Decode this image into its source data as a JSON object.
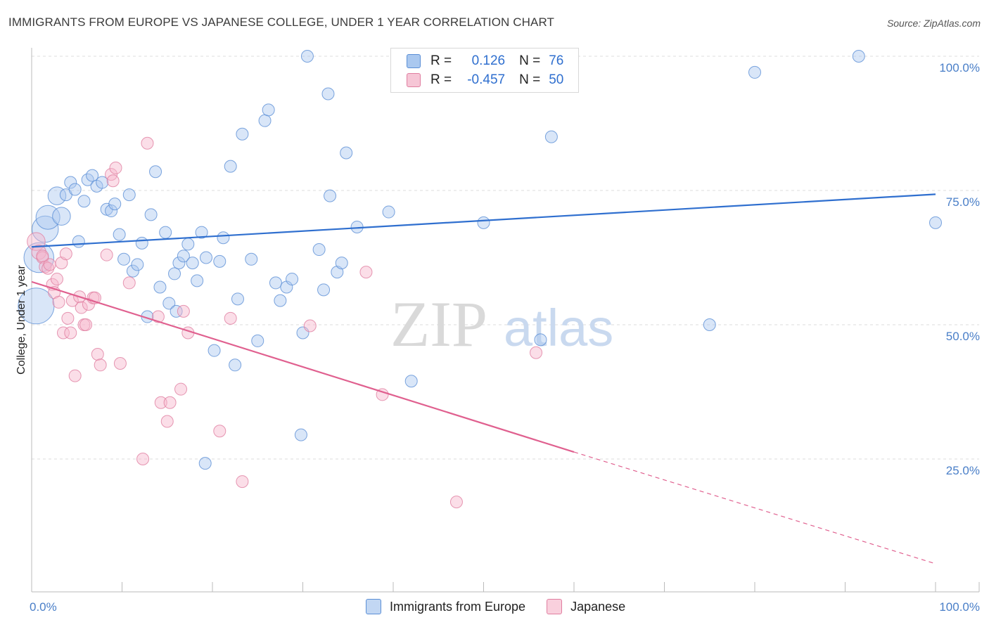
{
  "header": {
    "title": "IMMIGRANTS FROM EUROPE VS JAPANESE COLLEGE, UNDER 1 YEAR CORRELATION CHART",
    "source": "Source: ZipAtlas.com"
  },
  "legend": {
    "rows": [
      {
        "r_label": "R =",
        "r_value": "0.126",
        "n_label": "N =",
        "n_value": "76"
      },
      {
        "r_label": "R =",
        "r_value": "-0.457",
        "n_label": "N =",
        "n_value": "50"
      }
    ]
  },
  "watermark": {
    "zip": "ZIP",
    "atlas": "atlas"
  },
  "colors": {
    "blue_fill": "#aac8ef",
    "blue_stroke": "#5b8fd6",
    "blue_line": "#2f6fcf",
    "pink_fill": "#f6b6cb",
    "pink_stroke": "#e07ea0",
    "pink_line": "#e0608f",
    "grid": "#dcdcdc",
    "tick_text": "#4a7fc8"
  },
  "chart_data": {
    "type": "scatter",
    "title": "IMMIGRANTS FROM EUROPE VS JAPANESE COLLEGE, UNDER 1 YEAR CORRELATION CHART",
    "xlabel": "",
    "ylabel": "College, Under 1 year",
    "xlim": [
      0,
      100
    ],
    "ylim": [
      0,
      103
    ],
    "x_tick_labels": [
      "0.0%",
      "100.0%"
    ],
    "y_tick_labels": [
      "25.0%",
      "50.0%",
      "75.0%",
      "100.0%"
    ],
    "y_ticks": [
      25,
      50,
      75,
      100
    ],
    "grid": true,
    "legend_position": "top-center",
    "series": [
      {
        "name": "Immigrants from Europe",
        "color": "#aac8ef",
        "r": 0.126,
        "n": 76,
        "trend": {
          "x0": 0,
          "y0": 64.5,
          "x1": 100,
          "y1": 74.3
        },
        "points": [
          [
            0.5,
            53.5,
            3
          ],
          [
            0.8,
            62.5,
            2.5
          ],
          [
            1.5,
            67.8,
            2.2
          ],
          [
            1.8,
            70.0,
            2
          ],
          [
            2.8,
            74.0,
            1.5
          ],
          [
            3.3,
            70.2,
            1.5
          ],
          [
            3.8,
            74.2,
            1
          ],
          [
            4.3,
            76.5,
            1
          ],
          [
            4.8,
            75.2,
            1
          ],
          [
            5.2,
            65.5,
            1
          ],
          [
            5.8,
            73.0,
            1
          ],
          [
            6.2,
            77.0,
            1
          ],
          [
            6.7,
            77.8,
            1
          ],
          [
            7.2,
            75.8,
            1
          ],
          [
            7.8,
            76.5,
            1
          ],
          [
            8.3,
            71.5,
            1
          ],
          [
            8.8,
            71.2,
            1
          ],
          [
            9.2,
            72.5,
            1
          ],
          [
            9.7,
            66.8,
            1
          ],
          [
            10.2,
            62.2,
            1
          ],
          [
            10.8,
            74.2,
            1
          ],
          [
            11.2,
            60.0,
            1
          ],
          [
            11.7,
            61.2,
            1
          ],
          [
            12.2,
            65.2,
            1
          ],
          [
            12.8,
            51.5,
            1
          ],
          [
            13.2,
            70.5,
            1
          ],
          [
            13.7,
            78.5,
            1
          ],
          [
            14.2,
            57.0,
            1
          ],
          [
            14.8,
            67.2,
            1
          ],
          [
            15.2,
            54.0,
            1
          ],
          [
            15.8,
            59.5,
            1
          ],
          [
            16.3,
            61.5,
            1
          ],
          [
            16.8,
            62.8,
            1
          ],
          [
            17.3,
            65.0,
            1
          ],
          [
            17.8,
            61.5,
            1
          ],
          [
            18.3,
            58.2,
            1
          ],
          [
            18.8,
            67.2,
            1
          ],
          [
            19.3,
            62.5,
            1
          ],
          [
            20.2,
            45.2,
            1
          ],
          [
            20.8,
            61.8,
            1
          ],
          [
            21.2,
            66.2,
            1
          ],
          [
            22.0,
            79.5,
            1
          ],
          [
            22.5,
            42.5,
            1
          ],
          [
            22.8,
            54.8,
            1
          ],
          [
            23.3,
            85.5,
            1
          ],
          [
            24.3,
            62.2,
            1
          ],
          [
            25.0,
            47.0,
            1
          ],
          [
            25.8,
            88.0,
            1
          ],
          [
            26.2,
            90.0,
            1
          ],
          [
            27.0,
            57.8,
            1
          ],
          [
            27.5,
            54.5,
            1
          ],
          [
            28.2,
            57.0,
            1
          ],
          [
            28.8,
            58.5,
            1
          ],
          [
            29.8,
            29.5,
            1
          ],
          [
            30.0,
            48.5,
            1
          ],
          [
            30.5,
            100.0,
            1
          ],
          [
            31.8,
            64.0,
            1
          ],
          [
            32.3,
            56.5,
            1
          ],
          [
            32.8,
            93.0,
            1
          ],
          [
            33.0,
            74.0,
            1
          ],
          [
            33.8,
            59.8,
            1
          ],
          [
            34.3,
            61.5,
            1
          ],
          [
            34.8,
            82.0,
            1
          ],
          [
            36.0,
            68.2,
            1
          ],
          [
            39.5,
            71.0,
            1
          ],
          [
            42.0,
            39.5,
            1
          ],
          [
            44.0,
            100.0,
            1
          ],
          [
            50.0,
            69.0,
            1
          ],
          [
            56.3,
            47.2,
            1
          ],
          [
            57.5,
            85.0,
            1
          ],
          [
            75.0,
            50.0,
            1
          ],
          [
            80.0,
            97.0,
            1
          ],
          [
            91.5,
            100.0,
            1
          ],
          [
            100.0,
            69.0,
            1
          ],
          [
            19.2,
            24.2,
            1
          ],
          [
            16.0,
            52.5,
            1
          ]
        ]
      },
      {
        "name": "Japanese",
        "color": "#f6b6cb",
        "r": -0.457,
        "n": 50,
        "trend": {
          "x0": 0,
          "y0": 58.0,
          "x1": 60,
          "y1": 26.3,
          "dashed_to": {
            "x": 100,
            "y": 5.5
          }
        },
        "points": [
          [
            0.5,
            65.5,
            1.5
          ],
          [
            0.8,
            63.5,
            1.2
          ],
          [
            1.2,
            62.5,
            1
          ],
          [
            1.5,
            60.8,
            1
          ],
          [
            1.8,
            60.5,
            1
          ],
          [
            2.0,
            61.2,
            1
          ],
          [
            2.3,
            57.5,
            1
          ],
          [
            2.5,
            56.0,
            1
          ],
          [
            2.8,
            58.5,
            1
          ],
          [
            3.0,
            54.2,
            1
          ],
          [
            3.3,
            61.5,
            1
          ],
          [
            3.5,
            48.5,
            1
          ],
          [
            3.8,
            63.2,
            1
          ],
          [
            4.0,
            51.2,
            1
          ],
          [
            4.3,
            48.5,
            1
          ],
          [
            4.5,
            54.5,
            1
          ],
          [
            4.8,
            40.5,
            1
          ],
          [
            5.3,
            55.2,
            1
          ],
          [
            5.5,
            53.2,
            1
          ],
          [
            5.8,
            50.0,
            1
          ],
          [
            6.0,
            50.0,
            1
          ],
          [
            6.3,
            53.8,
            1
          ],
          [
            6.8,
            55.0,
            1
          ],
          [
            7.0,
            55.0,
            1
          ],
          [
            7.3,
            44.5,
            1
          ],
          [
            7.6,
            42.5,
            1
          ],
          [
            8.3,
            63.0,
            1
          ],
          [
            8.8,
            78.0,
            1
          ],
          [
            9.0,
            76.8,
            1
          ],
          [
            9.3,
            79.2,
            1
          ],
          [
            9.8,
            42.8,
            1
          ],
          [
            10.8,
            57.8,
            1
          ],
          [
            12.3,
            25.0,
            1
          ],
          [
            12.8,
            83.8,
            1
          ],
          [
            14.0,
            51.5,
            1
          ],
          [
            14.3,
            35.5,
            1
          ],
          [
            15.0,
            32.0,
            1
          ],
          [
            15.3,
            35.5,
            1
          ],
          [
            16.5,
            38.0,
            1
          ],
          [
            16.8,
            52.5,
            1
          ],
          [
            17.3,
            48.5,
            1
          ],
          [
            20.8,
            30.2,
            1
          ],
          [
            22.0,
            51.2,
            1
          ],
          [
            23.3,
            20.8,
            1
          ],
          [
            30.8,
            49.8,
            1
          ],
          [
            37.0,
            59.8,
            1
          ],
          [
            38.8,
            37.0,
            1
          ],
          [
            47.0,
            17.0,
            1
          ],
          [
            55.8,
            44.8,
            1
          ],
          [
            1.2,
            62.8,
            1
          ]
        ]
      }
    ]
  },
  "bottom_legend": {
    "items": [
      {
        "label": "Immigrants from Europe"
      },
      {
        "label": "Japanese"
      }
    ]
  }
}
